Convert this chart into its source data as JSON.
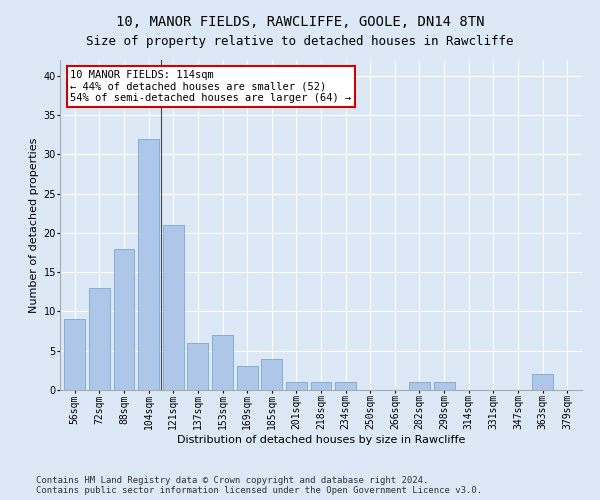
{
  "title": "10, MANOR FIELDS, RAWCLIFFE, GOOLE, DN14 8TN",
  "subtitle": "Size of property relative to detached houses in Rawcliffe",
  "xlabel": "Distribution of detached houses by size in Rawcliffe",
  "ylabel": "Number of detached properties",
  "categories": [
    "56sqm",
    "72sqm",
    "88sqm",
    "104sqm",
    "121sqm",
    "137sqm",
    "153sqm",
    "169sqm",
    "185sqm",
    "201sqm",
    "218sqm",
    "234sqm",
    "250sqm",
    "266sqm",
    "282sqm",
    "298sqm",
    "314sqm",
    "331sqm",
    "347sqm",
    "363sqm",
    "379sqm"
  ],
  "values": [
    9,
    13,
    18,
    32,
    21,
    6,
    7,
    3,
    4,
    1,
    1,
    1,
    0,
    0,
    1,
    1,
    0,
    0,
    0,
    2,
    0
  ],
  "bar_color": "#aec6e8",
  "bar_edge_color": "#7aa8d0",
  "vline_x": 3.5,
  "annotation_text": "10 MANOR FIELDS: 114sqm\n← 44% of detached houses are smaller (52)\n54% of semi-detached houses are larger (64) →",
  "annotation_box_facecolor": "#ffffff",
  "annotation_box_edgecolor": "#cc0000",
  "ylim": [
    0,
    42
  ],
  "yticks": [
    0,
    5,
    10,
    15,
    20,
    25,
    30,
    35,
    40
  ],
  "background_color": "#dce8f5",
  "footer_text": "Contains HM Land Registry data © Crown copyright and database right 2024.\nContains public sector information licensed under the Open Government Licence v3.0.",
  "title_fontsize": 10,
  "subtitle_fontsize": 9,
  "axis_label_fontsize": 8,
  "tick_fontsize": 7,
  "annotation_fontsize": 7.5,
  "footer_fontsize": 6.5
}
